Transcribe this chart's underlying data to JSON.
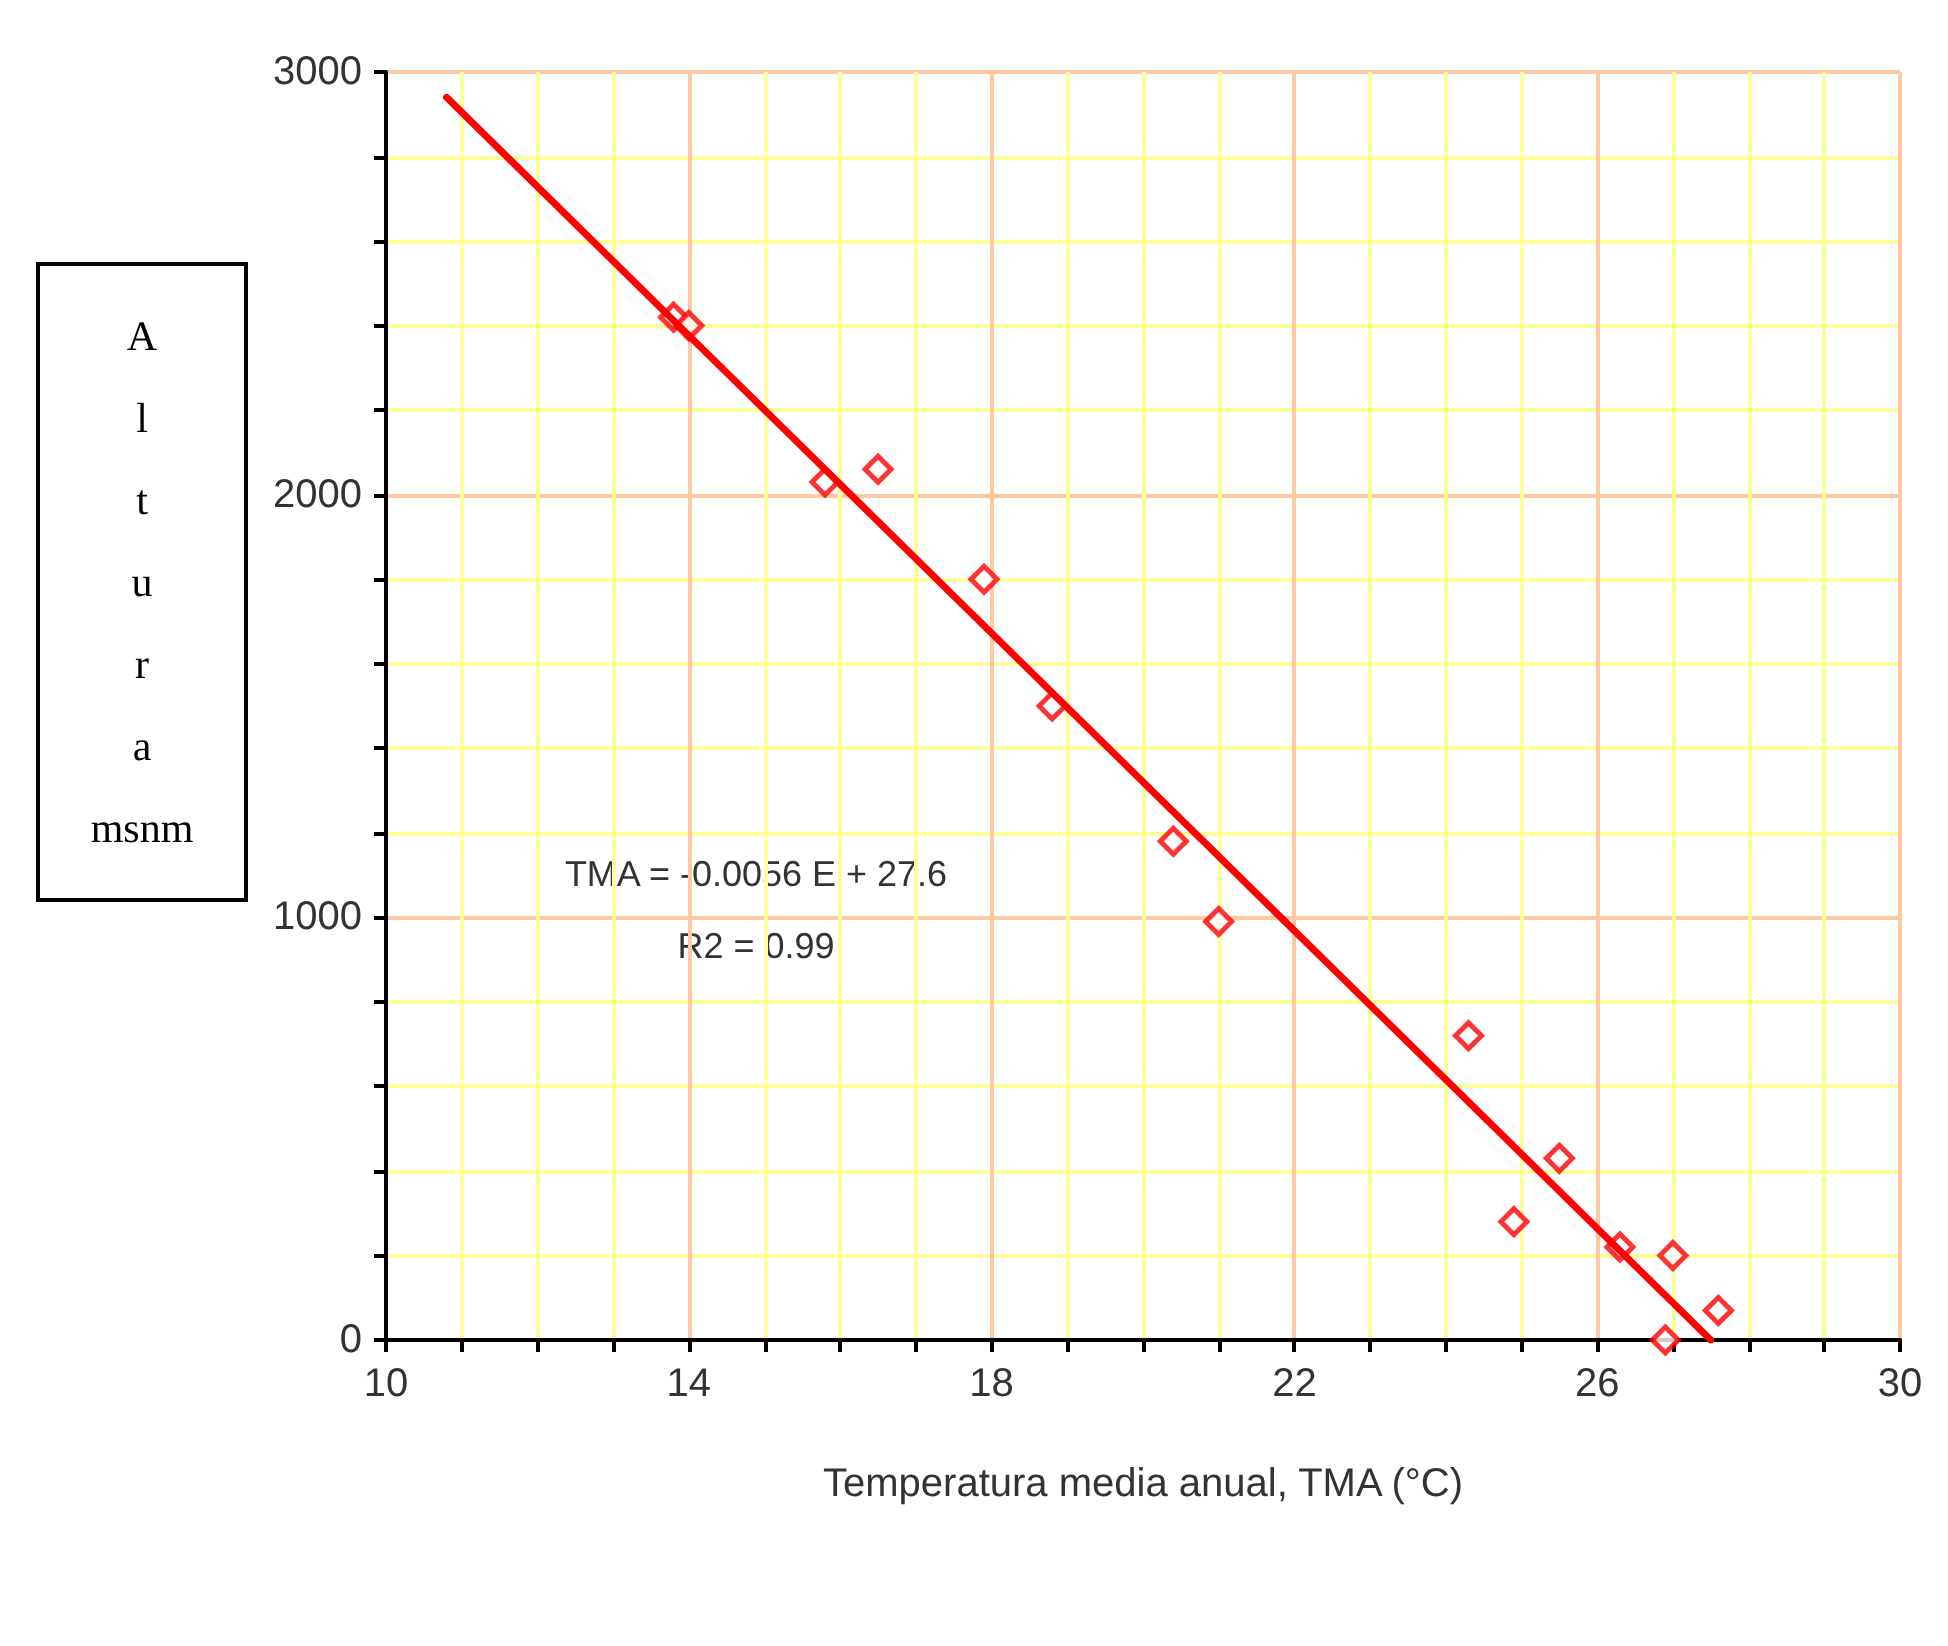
{
  "chart_data": {
    "type": "scatter",
    "xlabel": "Temperatura media anual, TMA (°C)",
    "ylabel": "Altura msnm",
    "xlim": [
      10,
      30
    ],
    "xticks": [
      10,
      {
        "value": 11,
        "label": null
      },
      {
        "value": 12,
        "label": null
      },
      {
        "value": 13,
        "label": null
      },
      14,
      {
        "value": 15,
        "label": null
      },
      {
        "value": 16,
        "label": null
      },
      {
        "value": 17,
        "label": null
      },
      18,
      {
        "value": 19,
        "label": null
      },
      {
        "value": 20,
        "label": null
      },
      {
        "value": 21,
        "label": null
      },
      22,
      {
        "value": 23,
        "label": null
      },
      {
        "value": 24,
        "label": null
      },
      {
        "value": 25,
        "label": null
      },
      26,
      {
        "value": 27,
        "label": null
      },
      {
        "value": 28,
        "label": null
      },
      {
        "value": 29,
        "label": null
      },
      30
    ],
    "ylim": [
      0,
      3000
    ],
    "yticks": [
      0,
      {
        "value": 200,
        "label": null
      },
      {
        "value": 400,
        "label": null
      },
      {
        "value": 600,
        "label": null
      },
      {
        "value": 800,
        "label": null
      },
      1000,
      {
        "value": 1200,
        "label": null
      },
      {
        "value": 1400,
        "label": null
      },
      {
        "value": 1600,
        "label": null
      },
      {
        "value": 1800,
        "label": null
      },
      2000,
      {
        "value": 2200,
        "label": null
      },
      {
        "value": 2400,
        "label": null
      },
      {
        "value": 2600,
        "label": null
      },
      {
        "value": 2800,
        "label": null
      },
      3000
    ],
    "grid": true,
    "marker": "diamond",
    "annotations": [
      "TMA = -0.0056 E + 27.6",
      "R2 = 0.99"
    ],
    "series": [
      {
        "color": "#ff0000",
        "x": [
          13.8,
          14.0,
          15.8,
          16.5,
          17.9,
          18.8,
          20.4,
          21.0,
          24.3,
          24.9,
          25.5,
          26.3,
          27.0,
          27.6,
          26.9
        ],
        "values": [
          2420,
          2400,
          2030,
          2060,
          1800,
          1500,
          1180,
          990,
          720,
          280,
          430,
          220,
          200,
          70,
          0
        ]
      },
      {
        "type": "line",
        "color": "#ff0000",
        "marker": "none",
        "line_style": "solid",
        "x": [
          10.8,
          27.5
        ],
        "values": [
          2940,
          0
        ]
      }
    ]
  }
}
